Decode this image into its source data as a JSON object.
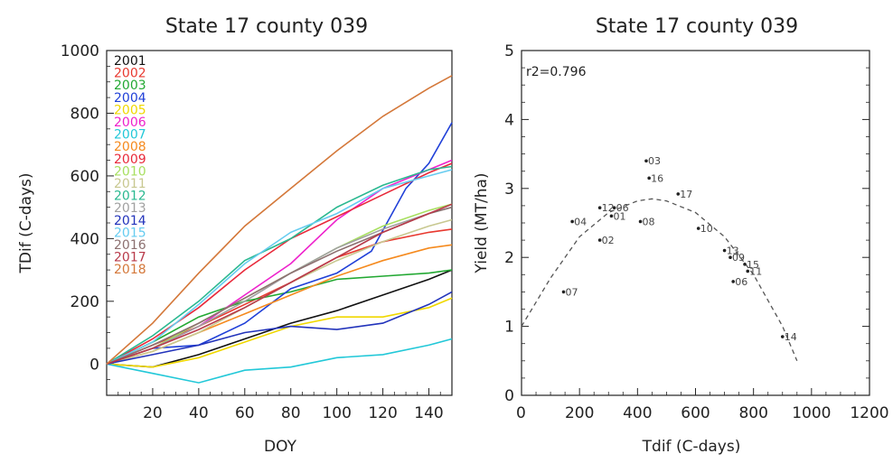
{
  "chart_data": [
    {
      "type": "line",
      "title": "State 17 county 039",
      "xlabel": "DOY",
      "ylabel": "TDif (C-days)",
      "xlim": [
        0,
        150
      ],
      "ylim": [
        -100,
        1000
      ],
      "x_ticks": [
        "20",
        "40",
        "60",
        "80",
        "100",
        "120",
        "140"
      ],
      "y_ticks": [
        "0",
        "200",
        "400",
        "600",
        "800",
        "1000"
      ],
      "legend_position": "top-left",
      "series": [
        {
          "name": "2001",
          "color": "#111111",
          "points": [
            [
              0,
              0
            ],
            [
              20,
              -10
            ],
            [
              40,
              30
            ],
            [
              60,
              80
            ],
            [
              80,
              130
            ],
            [
              100,
              170
            ],
            [
              120,
              220
            ],
            [
              140,
              270
            ],
            [
              150,
              300
            ]
          ]
        },
        {
          "name": "2002",
          "color": "#e8392f",
          "points": [
            [
              0,
              0
            ],
            [
              20,
              60
            ],
            [
              40,
              120
            ],
            [
              60,
              190
            ],
            [
              80,
              260
            ],
            [
              100,
              340
            ],
            [
              120,
              390
            ],
            [
              140,
              420
            ],
            [
              150,
              430
            ]
          ]
        },
        {
          "name": "2003",
          "color": "#22a832",
          "points": [
            [
              0,
              0
            ],
            [
              20,
              70
            ],
            [
              40,
              150
            ],
            [
              60,
              200
            ],
            [
              80,
              230
            ],
            [
              100,
              270
            ],
            [
              120,
              280
            ],
            [
              140,
              290
            ],
            [
              150,
              300
            ]
          ]
        },
        {
          "name": "2004",
          "color": "#2040d8",
          "points": [
            [
              0,
              0
            ],
            [
              20,
              50
            ],
            [
              40,
              60
            ],
            [
              60,
              130
            ],
            [
              80,
              240
            ],
            [
              100,
              290
            ],
            [
              115,
              360
            ],
            [
              130,
              560
            ],
            [
              140,
              640
            ],
            [
              150,
              770
            ]
          ]
        },
        {
          "name": "2005",
          "color": "#f0d800",
          "points": [
            [
              0,
              0
            ],
            [
              20,
              -10
            ],
            [
              40,
              20
            ],
            [
              60,
              70
            ],
            [
              80,
              120
            ],
            [
              100,
              150
            ],
            [
              120,
              150
            ],
            [
              140,
              180
            ],
            [
              150,
              210
            ]
          ]
        },
        {
          "name": "2006",
          "color": "#ee22cc",
          "points": [
            [
              0,
              0
            ],
            [
              20,
              50
            ],
            [
              40,
              120
            ],
            [
              60,
              220
            ],
            [
              80,
              320
            ],
            [
              100,
              460
            ],
            [
              120,
              560
            ],
            [
              140,
              620
            ],
            [
              150,
              650
            ]
          ]
        },
        {
          "name": "2007",
          "color": "#22c8d8",
          "points": [
            [
              0,
              0
            ],
            [
              20,
              -30
            ],
            [
              40,
              -60
            ],
            [
              60,
              -20
            ],
            [
              80,
              -10
            ],
            [
              100,
              20
            ],
            [
              120,
              30
            ],
            [
              140,
              60
            ],
            [
              150,
              80
            ]
          ]
        },
        {
          "name": "2008",
          "color": "#f58a1e",
          "points": [
            [
              0,
              0
            ],
            [
              20,
              40
            ],
            [
              40,
              100
            ],
            [
              60,
              160
            ],
            [
              80,
              220
            ],
            [
              100,
              280
            ],
            [
              120,
              330
            ],
            [
              140,
              370
            ],
            [
              150,
              380
            ]
          ]
        },
        {
          "name": "2009",
          "color": "#e8293a",
          "points": [
            [
              0,
              0
            ],
            [
              20,
              80
            ],
            [
              40,
              180
            ],
            [
              60,
              300
            ],
            [
              80,
              400
            ],
            [
              100,
              470
            ],
            [
              120,
              540
            ],
            [
              140,
              610
            ],
            [
              150,
              640
            ]
          ]
        },
        {
          "name": "2010",
          "color": "#a8e060",
          "points": [
            [
              0,
              0
            ],
            [
              20,
              50
            ],
            [
              40,
              130
            ],
            [
              60,
              210
            ],
            [
              80,
              290
            ],
            [
              100,
              370
            ],
            [
              120,
              440
            ],
            [
              140,
              490
            ],
            [
              150,
              510
            ]
          ]
        },
        {
          "name": "2011",
          "color": "#c8c890",
          "points": [
            [
              0,
              0
            ],
            [
              20,
              40
            ],
            [
              40,
              100
            ],
            [
              60,
              180
            ],
            [
              80,
              260
            ],
            [
              100,
              330
            ],
            [
              120,
              390
            ],
            [
              140,
              440
            ],
            [
              150,
              460
            ]
          ]
        },
        {
          "name": "2012",
          "color": "#2ab890",
          "points": [
            [
              0,
              0
            ],
            [
              20,
              90
            ],
            [
              40,
              200
            ],
            [
              60,
              330
            ],
            [
              80,
              400
            ],
            [
              100,
              500
            ],
            [
              120,
              570
            ],
            [
              140,
              620
            ],
            [
              150,
              630
            ]
          ]
        },
        {
          "name": "2013",
          "color": "#a0a0a0",
          "points": [
            [
              0,
              0
            ],
            [
              20,
              50
            ],
            [
              40,
              120
            ],
            [
              60,
              200
            ],
            [
              80,
              290
            ],
            [
              100,
              370
            ],
            [
              120,
              430
            ],
            [
              140,
              480
            ],
            [
              150,
              500
            ]
          ]
        },
        {
          "name": "2014",
          "color": "#2233bb",
          "points": [
            [
              0,
              0
            ],
            [
              20,
              30
            ],
            [
              40,
              60
            ],
            [
              60,
              100
            ],
            [
              80,
              120
            ],
            [
              100,
              110
            ],
            [
              120,
              130
            ],
            [
              140,
              190
            ],
            [
              150,
              230
            ]
          ]
        },
        {
          "name": "2015",
          "color": "#66ccf0",
          "points": [
            [
              0,
              0
            ],
            [
              20,
              70
            ],
            [
              40,
              190
            ],
            [
              60,
              320
            ],
            [
              80,
              420
            ],
            [
              100,
              480
            ],
            [
              120,
              560
            ],
            [
              140,
              600
            ],
            [
              150,
              620
            ]
          ]
        },
        {
          "name": "2016",
          "color": "#8c7070",
          "points": [
            [
              0,
              0
            ],
            [
              20,
              60
            ],
            [
              40,
              130
            ],
            [
              60,
              210
            ],
            [
              80,
              290
            ],
            [
              100,
              360
            ],
            [
              120,
              420
            ],
            [
              140,
              480
            ],
            [
              150,
              500
            ]
          ]
        },
        {
          "name": "2017",
          "color": "#b83a4a",
          "points": [
            [
              0,
              0
            ],
            [
              20,
              50
            ],
            [
              40,
              110
            ],
            [
              60,
              180
            ],
            [
              80,
              260
            ],
            [
              100,
              340
            ],
            [
              120,
              420
            ],
            [
              140,
              480
            ],
            [
              150,
              510
            ]
          ]
        },
        {
          "name": "2018",
          "color": "#d4783a",
          "points": [
            [
              0,
              0
            ],
            [
              20,
              130
            ],
            [
              40,
              290
            ],
            [
              60,
              440
            ],
            [
              80,
              560
            ],
            [
              100,
              680
            ],
            [
              120,
              790
            ],
            [
              140,
              880
            ],
            [
              150,
              920
            ]
          ]
        }
      ]
    },
    {
      "type": "scatter",
      "title": "State 17 county 039",
      "xlabel": "Tdif (C-days)",
      "ylabel": "Yield (MT/ha)",
      "xlim": [
        0,
        1200
      ],
      "ylim": [
        0,
        5
      ],
      "x_ticks": [
        "0",
        "200",
        "400",
        "600",
        "800",
        "1000",
        "1200"
      ],
      "y_ticks": [
        "0",
        "1",
        "2",
        "3",
        "4",
        "5"
      ],
      "annotation": "r2=0.796",
      "fit": "quadratic",
      "fit_points": [
        [
          0,
          1.0
        ],
        [
          100,
          1.7
        ],
        [
          200,
          2.3
        ],
        [
          300,
          2.65
        ],
        [
          400,
          2.82
        ],
        [
          450,
          2.85
        ],
        [
          500,
          2.82
        ],
        [
          600,
          2.65
        ],
        [
          700,
          2.3
        ],
        [
          800,
          1.75
        ],
        [
          900,
          1.0
        ],
        [
          950,
          0.5
        ]
      ],
      "points": [
        {
          "label": "01",
          "x": 310,
          "y": 2.6
        },
        {
          "label": "02",
          "x": 270,
          "y": 2.25
        },
        {
          "label": "03",
          "x": 430,
          "y": 3.4
        },
        {
          "label": "04",
          "x": 175,
          "y": 2.52
        },
        {
          "label": "06",
          "x": 320,
          "y": 2.72
        },
        {
          "label": "07",
          "x": 145,
          "y": 1.5
        },
        {
          "label": "08",
          "x": 410,
          "y": 2.52
        },
        {
          "label": "09",
          "x": 720,
          "y": 2.0
        },
        {
          "label": "10",
          "x": 610,
          "y": 2.42
        },
        {
          "label": "11",
          "x": 780,
          "y": 1.8
        },
        {
          "label": "12",
          "x": 270,
          "y": 2.72
        },
        {
          "label": "13",
          "x": 700,
          "y": 2.1
        },
        {
          "label": "14",
          "x": 900,
          "y": 0.85
        },
        {
          "label": "15",
          "x": 770,
          "y": 1.9
        },
        {
          "label": "16",
          "x": 440,
          "y": 3.15
        },
        {
          "label": "17",
          "x": 540,
          "y": 2.92
        },
        {
          "label": "06",
          "x": 730,
          "y": 1.65
        }
      ]
    }
  ]
}
